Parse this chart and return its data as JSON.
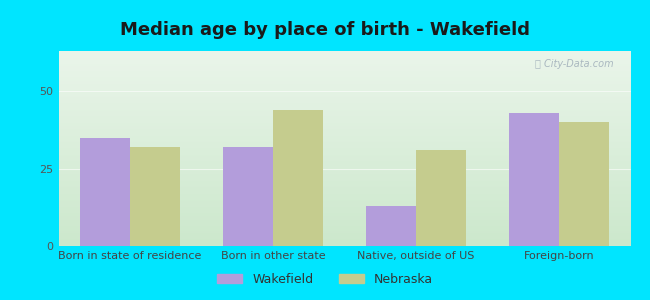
{
  "title": "Median age by place of birth - Wakefield",
  "categories": [
    "Born in state of residence",
    "Born in other state",
    "Native, outside of US",
    "Foreign-born"
  ],
  "wakefield_values": [
    35,
    32,
    13,
    43
  ],
  "nebraska_values": [
    32,
    44,
    31,
    40
  ],
  "wakefield_color": "#b39ddb",
  "nebraska_color": "#c5cc8e",
  "background_outer": "#00e5ff",
  "grad_top": "#eaf5ea",
  "grad_bottom": "#cce8cc",
  "ylim": [
    0,
    63
  ],
  "yticks": [
    0,
    25,
    50
  ],
  "bar_width": 0.35,
  "legend_labels": [
    "Wakefield",
    "Nebraska"
  ],
  "title_fontsize": 13,
  "tick_fontsize": 8,
  "legend_fontsize": 9,
  "watermark": "City-Data.com"
}
